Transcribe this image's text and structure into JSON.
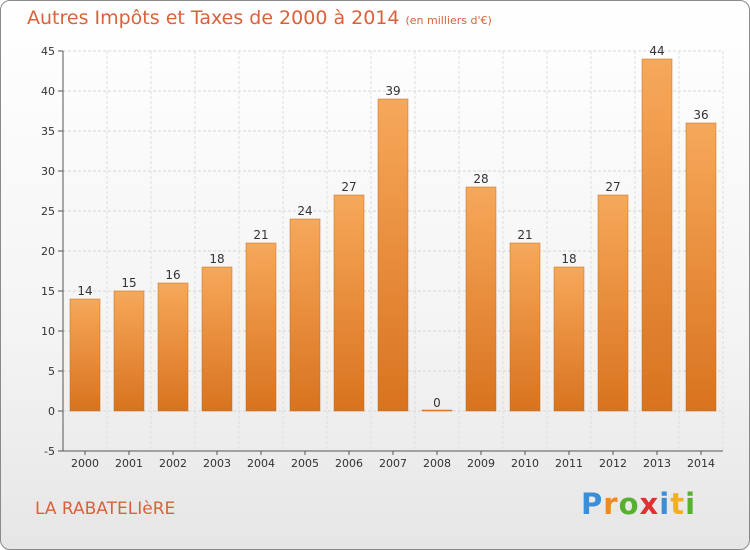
{
  "title": "Autres Impôts et Taxes de 2000 à 2014",
  "unit_note": "(en milliers d'€)",
  "commune": "LA RABATELIèRE",
  "logo": {
    "text": "Proxiti",
    "letters": [
      {
        "ch": "P",
        "color": "#3a8fd8"
      },
      {
        "ch": "r",
        "color": "#f08a20"
      },
      {
        "ch": "o",
        "color": "#58b030"
      },
      {
        "ch": "x",
        "color": "#e03030"
      },
      {
        "ch": "i",
        "color": "#3a8fd8"
      },
      {
        "ch": "t",
        "color": "#f0b020"
      },
      {
        "ch": "i",
        "color": "#58b030"
      }
    ]
  },
  "chart_data": {
    "type": "bar",
    "title": "Autres Impôts et Taxes de 2000 à 2014",
    "categories": [
      "2000",
      "2001",
      "2002",
      "2003",
      "2004",
      "2005",
      "2006",
      "2007",
      "2008",
      "2009",
      "2010",
      "2011",
      "2012",
      "2013",
      "2014"
    ],
    "values": [
      14,
      15,
      16,
      18,
      21,
      24,
      27,
      39,
      0,
      28,
      21,
      18,
      27,
      44,
      36
    ],
    "ylim": [
      -5,
      45
    ],
    "yticks": [
      -5,
      0,
      5,
      10,
      15,
      20,
      25,
      30,
      35,
      40,
      45
    ],
    "grid": true,
    "bar_color_top": "#f7a85a",
    "bar_color_bottom": "#d8731f"
  }
}
